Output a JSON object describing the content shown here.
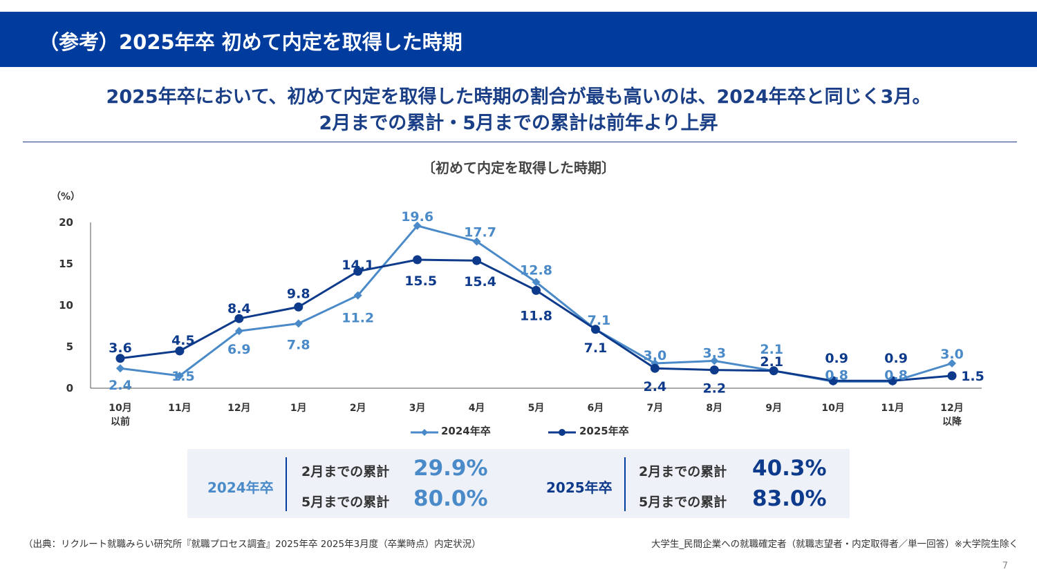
{
  "header": {
    "title": "（参考）2025年卒 初めて内定を取得した時期"
  },
  "headline": {
    "line1": "2025年卒において、初めて内定を取得した時期の割合が最も高いのは、2024年卒と同じく3月。",
    "line2": "2月までの累計・5月までの累計は前年より上昇"
  },
  "colors": {
    "header_bg": "#003c9e",
    "series_2024": "#4a8ac8",
    "series_2025": "#0e3a8c",
    "headline": "#1a3f86"
  },
  "chart_data": {
    "type": "line",
    "title": "〔初めて内定を取得した時期〕",
    "ylabel": "（%）",
    "ylim": [
      0,
      20
    ],
    "yticks": [
      0,
      5,
      10,
      15,
      20
    ],
    "categories": [
      [
        "10月",
        "以前"
      ],
      [
        "11月"
      ],
      [
        "12月"
      ],
      [
        "1月"
      ],
      [
        "2月"
      ],
      [
        "3月"
      ],
      [
        "4月"
      ],
      [
        "5月"
      ],
      [
        "6月"
      ],
      [
        "7月"
      ],
      [
        "8月"
      ],
      [
        "9月"
      ],
      [
        "10月"
      ],
      [
        "11月"
      ],
      [
        "12月",
        "以降"
      ]
    ],
    "series": [
      {
        "name": "2024年卒",
        "marker": "diamond",
        "values": [
          2.4,
          1.5,
          6.9,
          7.8,
          11.2,
          19.6,
          17.7,
          12.8,
          7.1,
          3.0,
          3.3,
          2.1,
          0.8,
          0.8,
          3.0
        ],
        "labels": [
          "2.4",
          "1.5",
          "6.9",
          "7.8",
          "11.2",
          "19.6",
          "17.7",
          "12.8",
          "7.1",
          "3.0",
          "3.3",
          "2.1",
          "0.8",
          "0.8",
          "3.0"
        ]
      },
      {
        "name": "2025年卒",
        "marker": "circle",
        "values": [
          3.6,
          4.5,
          8.4,
          9.8,
          14.1,
          15.5,
          15.4,
          11.8,
          7.1,
          2.4,
          2.2,
          2.1,
          0.9,
          0.9,
          1.5
        ],
        "labels": [
          "3.6",
          "4.5",
          "8.4",
          "9.8",
          "14.1",
          "15.5",
          "15.4",
          "11.8",
          "7.1",
          "2.4",
          "2.2",
          "2.1",
          "0.9",
          "0.9",
          "1.5"
        ]
      }
    ],
    "legend": [
      "2024年卒",
      "2025年卒"
    ],
    "legend_position": "bottom-center"
  },
  "summary": {
    "y2024": {
      "cohort": "2024年卒",
      "rows": [
        {
          "label": "2月までの累計",
          "value": "29.9%"
        },
        {
          "label": "5月までの累計",
          "value": "80.0%"
        }
      ]
    },
    "y2025": {
      "cohort": "2025年卒",
      "rows": [
        {
          "label": "2月までの累計",
          "value": "40.3%"
        },
        {
          "label": "5月までの累計",
          "value": "83.0%"
        }
      ]
    }
  },
  "footnotes": {
    "source": "（出典：リクルート就職みらい研究所『就職プロセス調査』2025年卒 2025年3月度（卒業時点）内定状況）",
    "scope": "大学生_民間企業への就職確定者（就職志望者・内定取得者／単一回答）※大学院生除く"
  },
  "page_number": "7"
}
